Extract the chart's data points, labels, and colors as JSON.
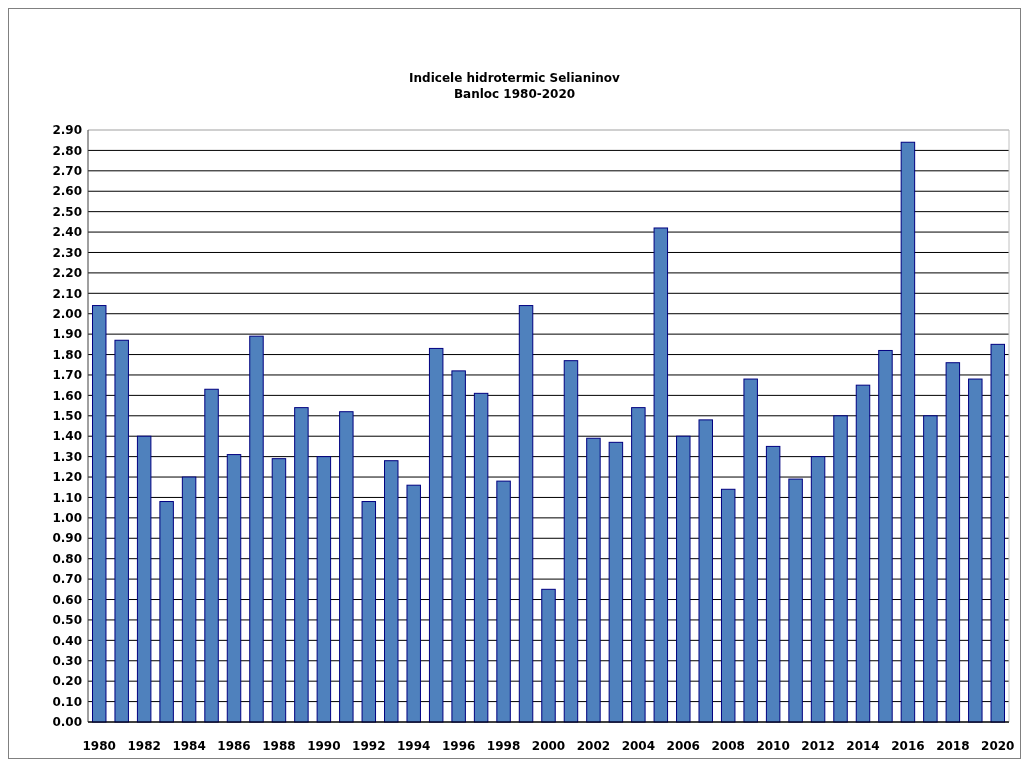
{
  "chart_data": {
    "type": "bar",
    "title": "Indicele hidrotermic Selianinov\nBanloc 1980-2020",
    "categories": [
      "1980",
      null,
      "1982",
      null,
      "1984",
      null,
      "1986",
      null,
      "1988",
      null,
      "1990",
      null,
      "1992",
      null,
      "1994",
      null,
      "1996",
      null,
      "1998",
      null,
      "2000",
      null,
      "2002",
      null,
      "2004",
      null,
      "2006",
      null,
      "2008",
      null,
      "2010",
      null,
      "2012",
      null,
      "2014",
      null,
      "2016",
      null,
      "2018",
      null,
      "2020"
    ],
    "values": [
      2.04,
      1.87,
      1.4,
      1.08,
      1.2,
      1.63,
      1.31,
      1.89,
      1.29,
      1.54,
      1.3,
      1.52,
      1.08,
      1.28,
      1.16,
      1.83,
      1.72,
      1.61,
      1.18,
      2.04,
      0.65,
      1.77,
      1.39,
      1.37,
      1.54,
      2.42,
      1.4,
      1.48,
      1.14,
      1.68,
      1.35,
      1.19,
      1.3,
      1.5,
      1.65,
      1.82,
      2.84,
      1.5,
      1.76,
      1.68,
      1.85
    ],
    "color": "#4f81bd",
    "ylim": [
      0,
      2.9
    ],
    "yticks": [
      {
        "value": 0,
        "label": "0.00"
      },
      {
        "value": 0.1,
        "label": "0.10"
      },
      {
        "value": 0.2,
        "label": "0.20"
      },
      {
        "value": 0.3,
        "label": "0.30"
      },
      {
        "value": 0.4,
        "label": "0.40"
      },
      {
        "value": 0.5,
        "label": "0.50"
      },
      {
        "value": 0.6,
        "label": "0.60"
      },
      {
        "value": 0.7,
        "label": "0.70"
      },
      {
        "value": 0.8,
        "label": "0.80"
      },
      {
        "value": 0.9,
        "label": "0.90"
      },
      {
        "value": 1,
        "label": "1.00"
      },
      {
        "value": 1.1,
        "label": "1.10"
      },
      {
        "value": 1.2,
        "label": "1.20"
      },
      {
        "value": 1.3,
        "label": "1.30"
      },
      {
        "value": 1.4,
        "label": "1.40"
      },
      {
        "value": 1.5,
        "label": "1.50"
      },
      {
        "value": 1.6,
        "label": "1.60"
      },
      {
        "value": 1.7,
        "label": "1.70"
      },
      {
        "value": 1.8,
        "label": "1.80"
      },
      {
        "value": 1.9,
        "label": "1.90"
      },
      {
        "value": 2,
        "label": "2.00"
      },
      {
        "value": 2.1,
        "label": "2.10"
      },
      {
        "value": 2.2,
        "label": "2.20"
      },
      {
        "value": 2.3,
        "label": "2.30"
      },
      {
        "value": 2.4,
        "label": "2.40"
      },
      {
        "value": 2.5,
        "label": "2.50"
      },
      {
        "value": 2.6,
        "label": "2.60"
      },
      {
        "value": 2.7,
        "label": "2.70"
      },
      {
        "value": 2.8,
        "label": "2.80"
      },
      {
        "value": 2.9,
        "label": "2.90"
      }
    ],
    "grid": "y"
  }
}
